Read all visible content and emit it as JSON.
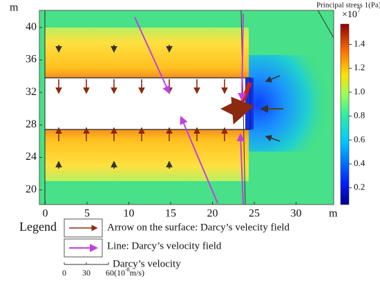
{
  "chart_data": {
    "type": "heatmap",
    "title": "Principal stress 1(Pa)",
    "x_unit": "m",
    "y_unit": "m",
    "xlim": [
      -0.7,
      34.5
    ],
    "xticks": [
      0,
      5,
      10,
      15,
      20,
      25,
      30
    ],
    "ylim": [
      18.2,
      42.1
    ],
    "yticks": [
      20,
      24,
      28,
      32,
      36,
      40
    ],
    "clim": [
      0.06,
      1.57
    ],
    "cticks": [
      0.2,
      0.4,
      0.6,
      0.8,
      1.0,
      1.2,
      1.4
    ],
    "colorbar_multiplier": "×10",
    "colorbar_exponent": "7",
    "legend": {
      "title": "Legend",
      "entries": [
        "Arrow on the surface: Darcy’s velecity field",
        "Line: Darcy’s velocity field"
      ],
      "scale_label": "Darcy’s velocity",
      "scale_ticks": [
        0,
        30,
        {
          "value": 60,
          "label": "60(10"
        }
      ],
      "scale_unit_exponent": "-8",
      "scale_unit": "m/s)"
    }
  }
}
